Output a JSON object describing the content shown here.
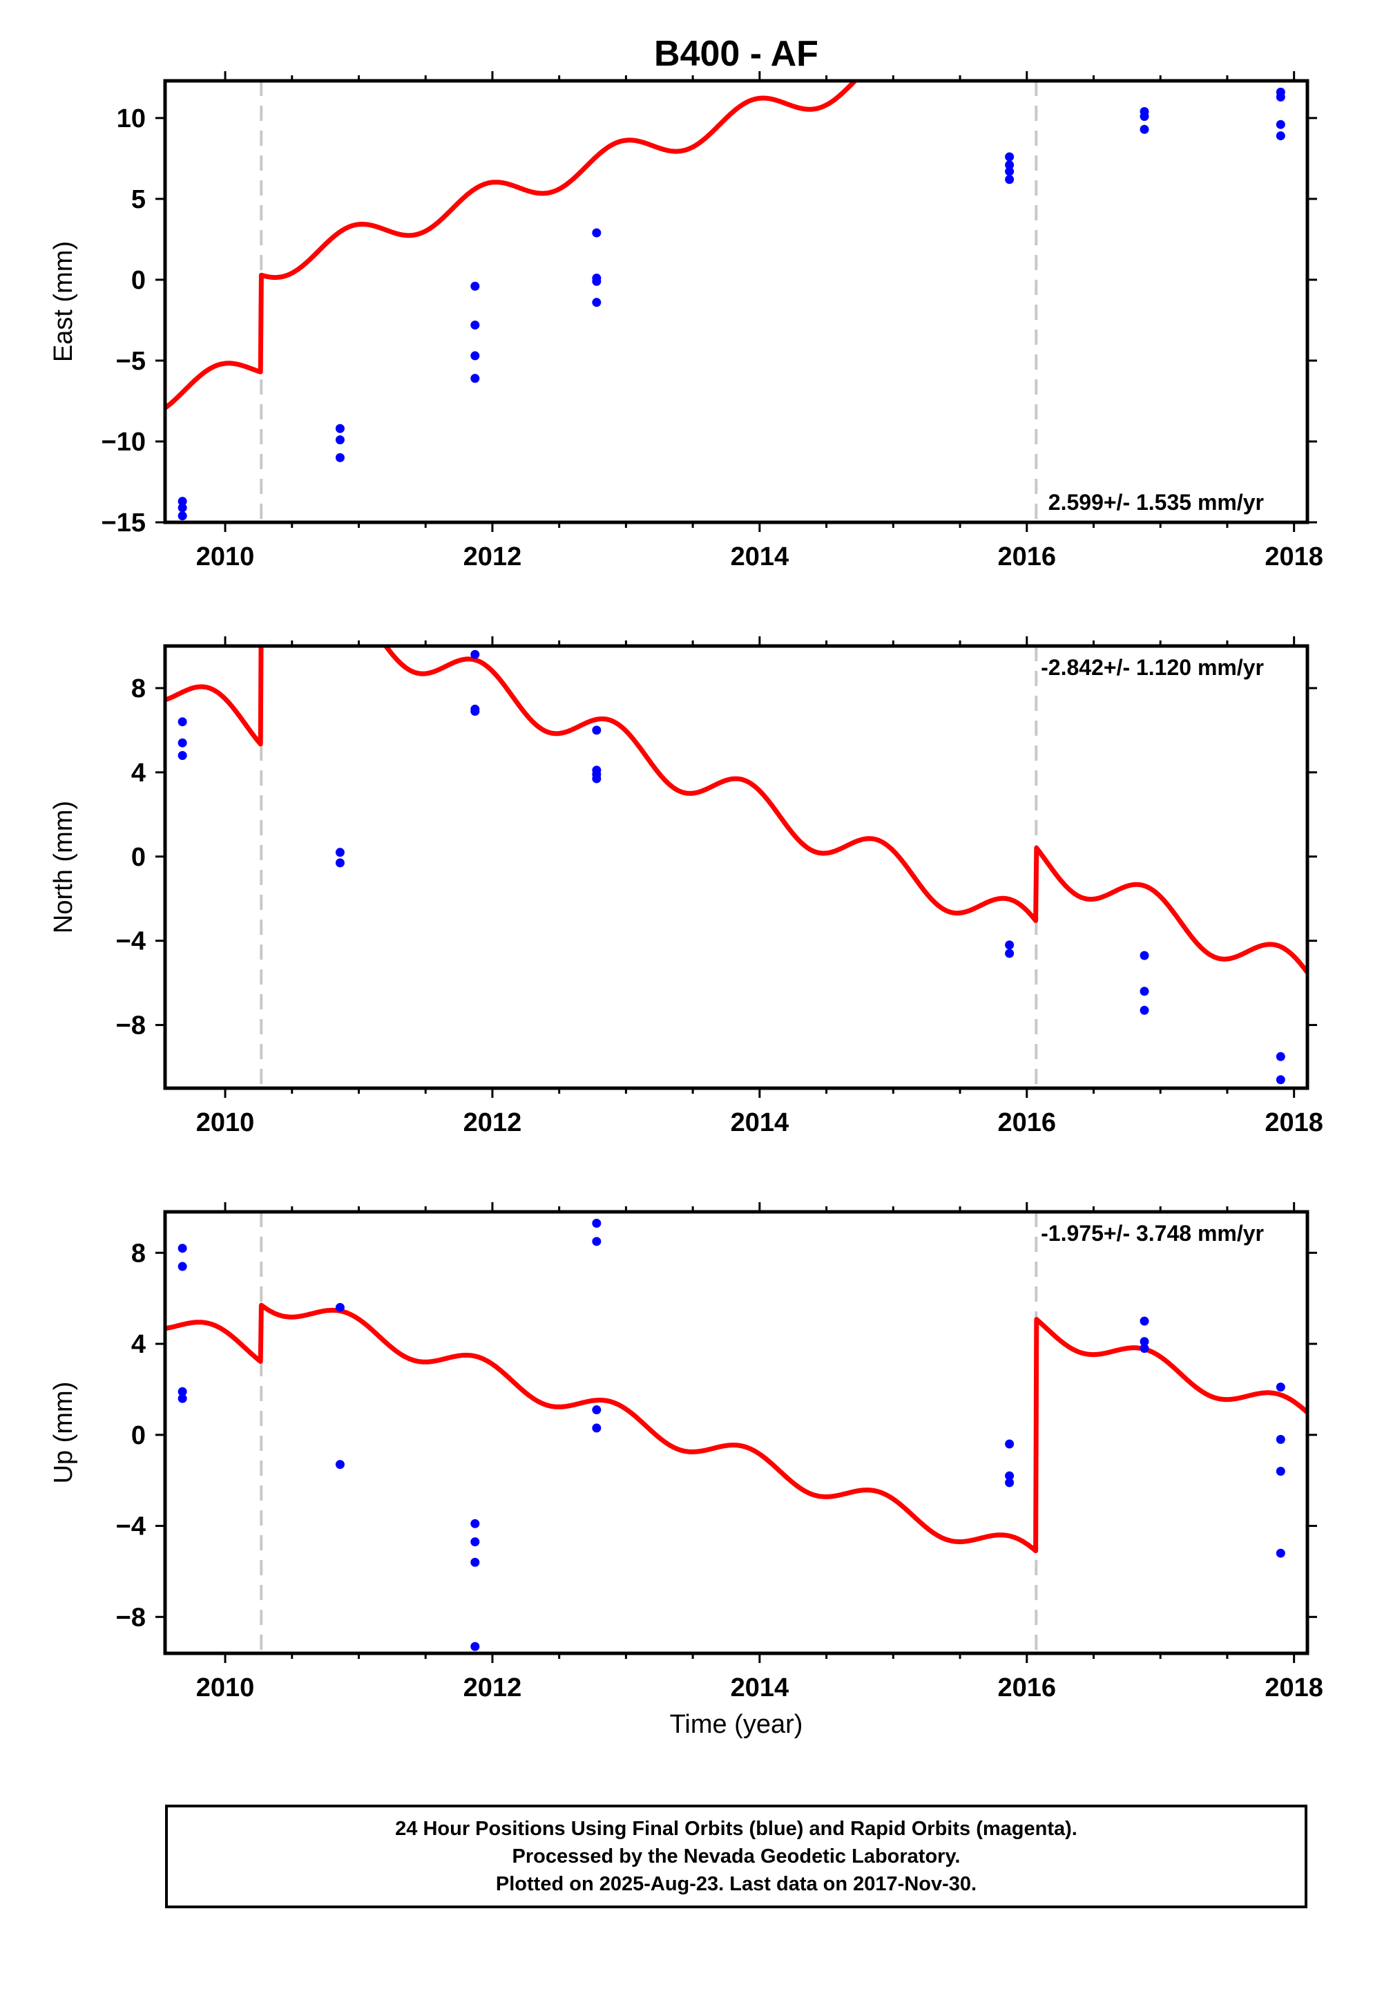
{
  "chart_data": {
    "title": "B400 - AF",
    "xlabel": "Time (year)",
    "xlim": [
      2009.55,
      2018.1
    ],
    "x_ticks": [
      2010,
      2012,
      2014,
      2016,
      2018
    ],
    "equipment_changes": [
      2010.27,
      2016.07
    ],
    "colors": {
      "model": "#ff0000",
      "final_orbits": "#0000ff",
      "equipment_change": "#c8c8c8"
    },
    "panels": [
      {
        "name": "east",
        "type": "scatter",
        "ylabel": "East (mm)",
        "ylim": [
          -15,
          12.3
        ],
        "y_ticks": [
          -15,
          -10,
          -5,
          0,
          5,
          10
        ],
        "rate_label": "2.599+/- 1.535 mm/yr",
        "rate_position": "bottom-right",
        "model": {
          "slope": 2.599,
          "intercept": -7.2,
          "amplitude": 0.9,
          "phase_year": 2010.7,
          "offsets": [
            {
              "year": 2010.27,
              "size": 6.0
            }
          ]
        },
        "points": [
          {
            "x": 2009.68,
            "y": -13.7
          },
          {
            "x": 2009.68,
            "y": -14.1
          },
          {
            "x": 2009.68,
            "y": -14.6
          },
          {
            "x": 2010.86,
            "y": -9.2
          },
          {
            "x": 2010.86,
            "y": -9.9
          },
          {
            "x": 2010.86,
            "y": -11.0
          },
          {
            "x": 2011.87,
            "y": -0.4
          },
          {
            "x": 2011.87,
            "y": -2.8
          },
          {
            "x": 2011.87,
            "y": -4.7
          },
          {
            "x": 2011.87,
            "y": -6.1
          },
          {
            "x": 2012.78,
            "y": 2.9
          },
          {
            "x": 2012.78,
            "y": 0.1
          },
          {
            "x": 2012.78,
            "y": -0.1
          },
          {
            "x": 2012.78,
            "y": -1.4
          },
          {
            "x": 2015.87,
            "y": 7.6
          },
          {
            "x": 2015.87,
            "y": 7.1
          },
          {
            "x": 2015.87,
            "y": 6.7
          },
          {
            "x": 2015.87,
            "y": 6.2
          },
          {
            "x": 2016.88,
            "y": 10.4
          },
          {
            "x": 2016.88,
            "y": 10.1
          },
          {
            "x": 2016.88,
            "y": 9.3
          },
          {
            "x": 2017.9,
            "y": 11.6
          },
          {
            "x": 2017.9,
            "y": 11.3
          },
          {
            "x": 2017.9,
            "y": 9.6
          },
          {
            "x": 2017.9,
            "y": 8.9
          }
        ]
      },
      {
        "name": "north",
        "type": "scatter",
        "ylabel": "North (mm)",
        "ylim": [
          -11,
          10
        ],
        "y_ticks": [
          -8,
          -4,
          0,
          4,
          8
        ],
        "rate_label": "-2.842+/- 1.120 mm/yr",
        "rate_position": "top-right",
        "model": {
          "slope": -2.842,
          "intercept": 8.0,
          "amplitude": 0.95,
          "phase_year": 2010.65,
          "offsets": [
            {
              "year": 2010.27,
              "size": 7.0
            },
            {
              "year": 2016.07,
              "size": 3.5
            }
          ]
        },
        "points": [
          {
            "x": 2009.68,
            "y": 6.4
          },
          {
            "x": 2009.68,
            "y": 5.4
          },
          {
            "x": 2009.68,
            "y": 4.8
          },
          {
            "x": 2010.86,
            "y": 0.2
          },
          {
            "x": 2010.86,
            "y": -0.3
          },
          {
            "x": 2011.87,
            "y": 9.6
          },
          {
            "x": 2011.87,
            "y": 7.0
          },
          {
            "x": 2011.87,
            "y": 6.9
          },
          {
            "x": 2012.78,
            "y": 6.0
          },
          {
            "x": 2012.78,
            "y": 4.1
          },
          {
            "x": 2012.78,
            "y": 3.9
          },
          {
            "x": 2012.78,
            "y": 3.7
          },
          {
            "x": 2015.87,
            "y": -4.2
          },
          {
            "x": 2015.87,
            "y": -4.6
          },
          {
            "x": 2016.88,
            "y": -4.7
          },
          {
            "x": 2016.88,
            "y": -6.4
          },
          {
            "x": 2016.88,
            "y": -7.3
          },
          {
            "x": 2017.9,
            "y": -9.5
          },
          {
            "x": 2017.9,
            "y": -10.6
          }
        ]
      },
      {
        "name": "up",
        "type": "scatter",
        "ylabel": "Up (mm)",
        "ylim": [
          -9.6,
          9.8
        ],
        "y_ticks": [
          -8,
          -4,
          0,
          4,
          8
        ],
        "rate_label": "-1.975+/- 3.748 mm/yr",
        "rate_position": "top-right",
        "model": {
          "slope": -1.975,
          "intercept": 5.0,
          "amplitude": 0.55,
          "phase_year": 2010.65,
          "offsets": [
            {
              "year": 2010.27,
              "size": 2.5
            },
            {
              "year": 2016.07,
              "size": 10.2
            }
          ]
        },
        "points": [
          {
            "x": 2009.68,
            "y": 8.2
          },
          {
            "x": 2009.68,
            "y": 7.4
          },
          {
            "x": 2009.68,
            "y": 1.9
          },
          {
            "x": 2009.68,
            "y": 1.6
          },
          {
            "x": 2010.86,
            "y": 5.6
          },
          {
            "x": 2010.86,
            "y": -1.3
          },
          {
            "x": 2011.87,
            "y": -3.9
          },
          {
            "x": 2011.87,
            "y": -4.7
          },
          {
            "x": 2011.87,
            "y": -5.6
          },
          {
            "x": 2011.87,
            "y": -9.3
          },
          {
            "x": 2012.78,
            "y": 9.3
          },
          {
            "x": 2012.78,
            "y": 8.5
          },
          {
            "x": 2012.78,
            "y": 1.1
          },
          {
            "x": 2012.78,
            "y": 0.3
          },
          {
            "x": 2015.87,
            "y": -0.4
          },
          {
            "x": 2015.87,
            "y": -1.8
          },
          {
            "x": 2015.87,
            "y": -2.1
          },
          {
            "x": 2016.88,
            "y": 5.0
          },
          {
            "x": 2016.88,
            "y": 4.1
          },
          {
            "x": 2016.88,
            "y": 3.8
          },
          {
            "x": 2017.9,
            "y": 2.1
          },
          {
            "x": 2017.9,
            "y": -0.2
          },
          {
            "x": 2017.9,
            "y": -1.6
          },
          {
            "x": 2017.9,
            "y": -5.2
          }
        ]
      }
    ]
  },
  "footer": {
    "line1": "24 Hour Positions Using Final Orbits (blue) and Rapid Orbits (magenta).",
    "line2": "Processed by the Nevada Geodetic Laboratory.",
    "line3": "Plotted on 2025-Aug-23. Last data on 2017-Nov-30."
  }
}
